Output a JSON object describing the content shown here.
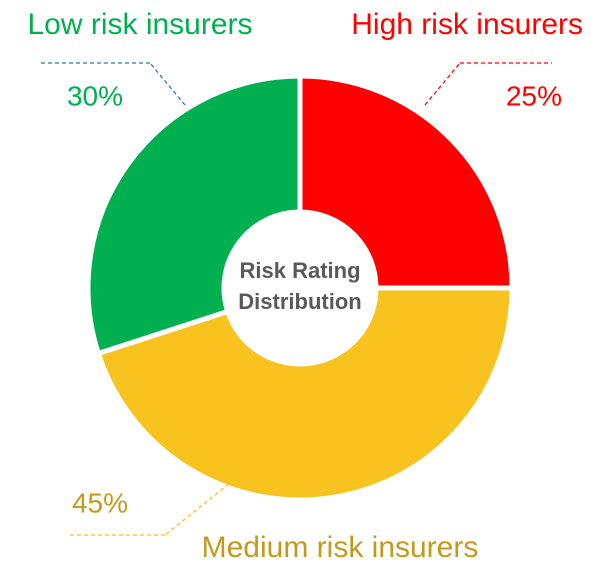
{
  "chart_data": {
    "type": "donut",
    "center_label": [
      "Risk Rating",
      "Distribution"
    ],
    "categories": [
      "High risk insurers",
      "Medium risk insurers",
      "Low risk insurers"
    ],
    "values": [
      25,
      45,
      30
    ],
    "value_labels": [
      "25%",
      "45%",
      "30%"
    ],
    "colors": [
      "#ff0000",
      "#f8c21f",
      "#00b050"
    ],
    "label_colors": [
      "#ff0000",
      "#c49a1c",
      "#00b050"
    ]
  }
}
